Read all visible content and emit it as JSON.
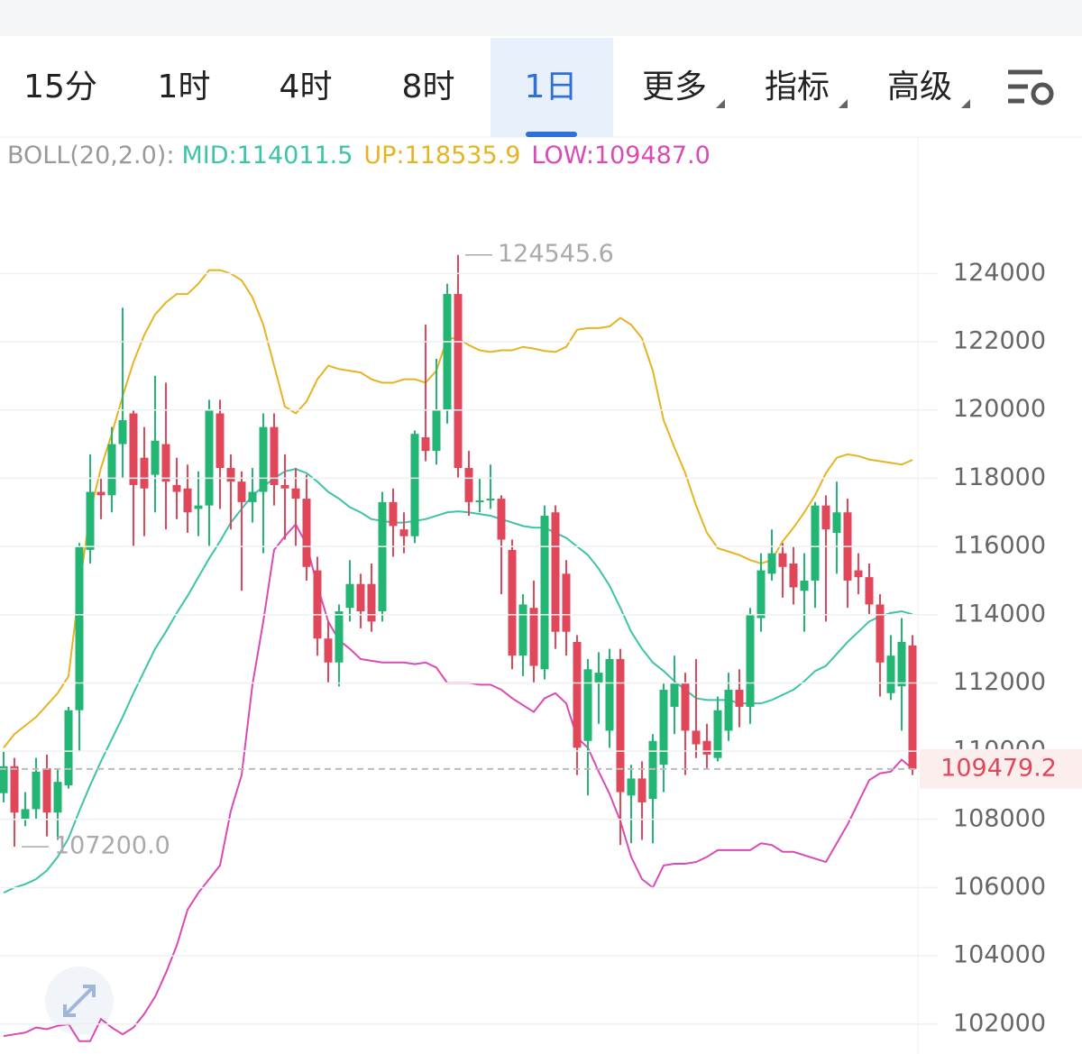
{
  "tabs": [
    "15分",
    "1时",
    "4时",
    "8时",
    "1日",
    "更多",
    "指标",
    "高级"
  ],
  "active_tab": "1日",
  "chart_data": {
    "type": "candlestick",
    "indicator": "BOLL(20,2.0):",
    "ylim": [
      101150,
      128000
    ],
    "yticks": [
      102000,
      104000,
      106000,
      108000,
      110000,
      112000,
      114000,
      116000,
      118000,
      120000,
      122000,
      124000
    ],
    "grid": true,
    "candles": {
      "up_color": "#22b573",
      "down_color": "#e0475b",
      "open": [
        108770,
        109560,
        108000,
        108300,
        109500,
        108200,
        109000,
        111200,
        115900,
        117600,
        117500,
        119000,
        119900,
        118600,
        118100,
        119000,
        117800,
        117700,
        117100,
        117200,
        119900,
        118300,
        117900,
        117300,
        117600,
        119500,
        117800,
        117700,
        117400,
        115300,
        113300,
        112600,
        114200,
        114900,
        114900,
        114100,
        117300,
        116500,
        116300,
        119200,
        118800,
        120000,
        123400,
        118300,
        117300,
        117350,
        117400,
        115900,
        112800,
        114200,
        112400,
        117000,
        115200,
        113200,
        110300,
        112000,
        110600,
        112700,
        108700,
        109200,
        108600,
        109600,
        111300,
        112000,
        110600,
        110300,
        109800,
        110600,
        111800,
        111300,
        113900,
        115200,
        115800,
        115500,
        114700,
        115000,
        117200,
        116400,
        117000,
        115300,
        115100,
        114300,
        111700,
        111900,
        113100
      ],
      "high": [
        110000,
        109800,
        108800,
        109800,
        109900,
        109500,
        111300,
        116100,
        118700,
        118000,
        119500,
        123000,
        120000,
        119500,
        121000,
        120800,
        118600,
        118400,
        118200,
        120300,
        120300,
        118700,
        118200,
        118300,
        119900,
        119900,
        118700,
        118300,
        118100,
        115700,
        113800,
        114300,
        115600,
        115200,
        115500,
        117600,
        117700,
        117000,
        119400,
        122500,
        121500,
        123700,
        124545.6,
        118800,
        118000,
        118400,
        117500,
        116200,
        114600,
        115000,
        117200,
        117200,
        115600,
        113400,
        112700,
        112900,
        113000,
        113000,
        109600,
        109700,
        110500,
        112000,
        112800,
        112300,
        112700,
        110800,
        111600,
        112300,
        112400,
        114200,
        115800,
        116500,
        116100,
        116000,
        115800,
        117300,
        117500,
        117900,
        117400,
        115800,
        115500,
        114600,
        113400,
        113900,
        113400
      ],
      "low": [
        108500,
        107200,
        107800,
        108000,
        107500,
        107400,
        108900,
        110000,
        115500,
        116800,
        117000,
        118000,
        116000,
        116300,
        117000,
        116500,
        116800,
        116400,
        116300,
        116000,
        117100,
        116500,
        114700,
        116700,
        115800,
        117200,
        116200,
        116000,
        115000,
        112800,
        112000,
        111900,
        113800,
        113600,
        113500,
        113800,
        115700,
        115800,
        116100,
        118500,
        118400,
        119600,
        118000,
        116900,
        117000,
        117100,
        114600,
        112400,
        112200,
        112000,
        112100,
        113000,
        112800,
        109300,
        108700,
        110800,
        110100,
        107250,
        107300,
        107400,
        107300,
        108800,
        110500,
        109300,
        109800,
        109500,
        109700,
        110300,
        110700,
        110800,
        113500,
        115000,
        114500,
        114300,
        113500,
        114200,
        113800,
        115200,
        114200,
        114600,
        114000,
        111600,
        111500,
        110600,
        109300
      ],
      "close": [
        109560,
        108200,
        108300,
        109400,
        108200,
        109100,
        111200,
        116000,
        117600,
        117500,
        119000,
        119700,
        117800,
        117700,
        119100,
        117900,
        117600,
        117000,
        117200,
        120000,
        118300,
        117900,
        117300,
        117600,
        119500,
        117800,
        117700,
        117400,
        115400,
        113300,
        112600,
        114100,
        114900,
        114100,
        113800,
        117300,
        116600,
        116300,
        119300,
        118800,
        120000,
        123400,
        118300,
        117300,
        117350,
        117400,
        116200,
        112800,
        114300,
        112500,
        116900,
        113500,
        113500,
        110100,
        112400,
        112300,
        112700,
        108800,
        109200,
        108500,
        110300,
        111800,
        112000,
        110600,
        110200,
        109900,
        111200,
        111800,
        111300,
        114000,
        115300,
        115800,
        115400,
        114800,
        115000,
        117200,
        116500,
        117000,
        115000,
        115100,
        114300,
        112600,
        112800,
        113200,
        109479.2
      ]
    },
    "series": [
      {
        "name": "MID:114011.5",
        "color": "#3cc4a8",
        "values": [
          105850,
          106000,
          106100,
          106250,
          106500,
          106900,
          107450,
          108250,
          109000,
          109700,
          110350,
          111000,
          111700,
          112350,
          113000,
          113500,
          114050,
          114550,
          115100,
          115650,
          116150,
          116700,
          117100,
          117500,
          117750,
          118000,
          118200,
          118270,
          118150,
          117900,
          117600,
          117400,
          117150,
          117000,
          116800,
          116750,
          116700,
          116700,
          116750,
          116800,
          116900,
          117000,
          117030,
          117000,
          116950,
          116900,
          116800,
          116700,
          116600,
          116550,
          116550,
          116400,
          116250,
          116000,
          115750,
          115350,
          114850,
          114200,
          113500,
          113000,
          112600,
          112350,
          112050,
          111800,
          111550,
          111500,
          111500,
          111500,
          111400,
          111400,
          111400,
          111500,
          111650,
          111800,
          112050,
          112350,
          112500,
          112850,
          113200,
          113500,
          113800,
          113950,
          114050,
          114100,
          114011.5
        ]
      },
      {
        "name": "UP:118535.9",
        "color": "#e6b422",
        "values": [
          110100,
          110500,
          110750,
          111000,
          111350,
          111700,
          112200,
          114800,
          117000,
          118300,
          119300,
          120400,
          121400,
          122200,
          122800,
          123150,
          123400,
          123400,
          123700,
          124100,
          124100,
          124000,
          123800,
          123300,
          122500,
          121300,
          120100,
          119900,
          120250,
          120900,
          121300,
          121200,
          121150,
          121100,
          120900,
          120800,
          120800,
          120900,
          120900,
          120800,
          121150,
          122100,
          122100,
          121900,
          121750,
          121700,
          121750,
          121750,
          121850,
          121800,
          121730,
          121700,
          121850,
          122350,
          122400,
          122400,
          122450,
          122700,
          122500,
          122100,
          121150,
          119700,
          118900,
          118150,
          117200,
          116400,
          115950,
          115850,
          115750,
          115600,
          115500,
          115600,
          116150,
          116550,
          117000,
          117500,
          118150,
          118600,
          118700,
          118650,
          118550,
          118500,
          118450,
          118400,
          118535.9
        ]
      },
      {
        "name": "LOW:109487.0",
        "color": "#d94ab7",
        "values": [
          101650,
          101700,
          101750,
          101900,
          101850,
          101950,
          102000,
          101500,
          101500,
          102150,
          101900,
          101700,
          101900,
          102300,
          102800,
          103500,
          104300,
          105350,
          105850,
          106250,
          106650,
          108250,
          109300,
          111950,
          113800,
          115900,
          116300,
          116650,
          116050,
          114850,
          113800,
          113250,
          113000,
          112700,
          112650,
          112600,
          112600,
          112600,
          112550,
          112600,
          112450,
          112000,
          112000,
          112000,
          111950,
          111950,
          111800,
          111550,
          111350,
          111150,
          111550,
          111700,
          111400,
          110400,
          110100,
          109400,
          108750,
          107950,
          106900,
          106250,
          106000,
          106650,
          106700,
          106700,
          106750,
          106900,
          107100,
          107100,
          107100,
          107100,
          107300,
          107250,
          107050,
          107050,
          106950,
          106850,
          106750,
          107300,
          107850,
          108500,
          109150,
          109350,
          109400,
          109750,
          109487.0
        ]
      }
    ],
    "annotations": [
      {
        "value": 124545.6,
        "label": "124545.6"
      },
      {
        "value": 107200,
        "label": "107200.0"
      }
    ],
    "last_price": {
      "value": 109479.2,
      "label": "109479.2"
    }
  }
}
